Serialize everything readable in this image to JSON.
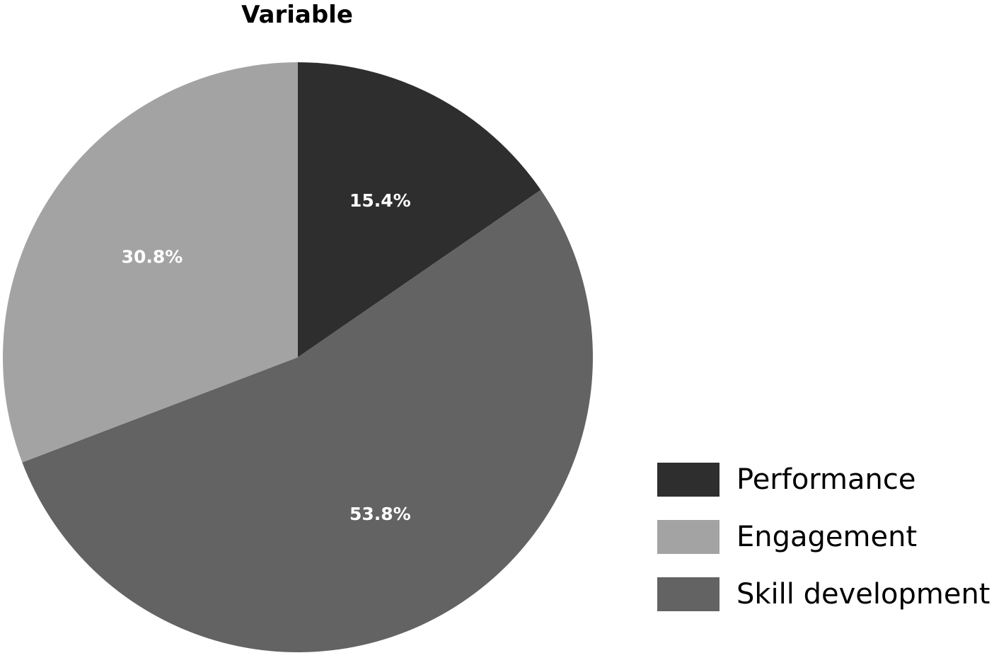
{
  "chart_data": {
    "type": "pie",
    "title": "Variable",
    "slices": [
      {
        "label": "Performance",
        "value": 15.4,
        "display": "15.4%",
        "color": "#2e2e2e"
      },
      {
        "label": "Skill development",
        "value": 53.8,
        "display": "53.8%",
        "color": "#636363"
      },
      {
        "label": "Engagement",
        "value": 30.8,
        "display": "30.8%",
        "color": "#a3a3a3"
      }
    ],
    "legend": {
      "placement": "bottom-right",
      "entries": [
        {
          "label": "Performance",
          "color": "#2e2e2e"
        },
        {
          "label": "Engagement",
          "color": "#a3a3a3"
        },
        {
          "label": "Skill development",
          "color": "#636363"
        }
      ]
    },
    "label_color": "#ffffff"
  }
}
